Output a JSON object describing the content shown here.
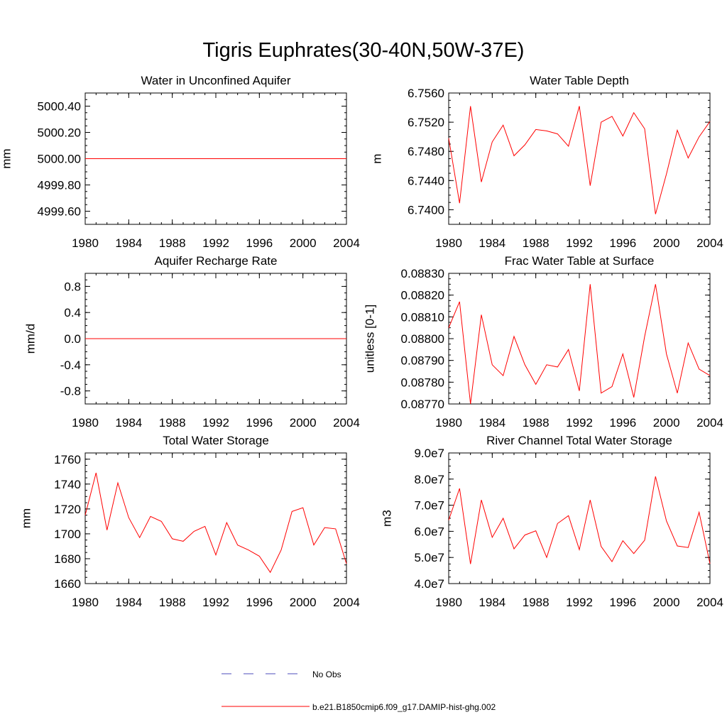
{
  "title": "Tigris Euphrates(30-40N,50W-37E)",
  "chart_data": [
    {
      "type": "line",
      "title": "Water in Unconfined Aquifer",
      "ylabel": "mm",
      "xlim": [
        1980,
        2004
      ],
      "ylim": [
        4999.5,
        5000.5
      ],
      "xticks": [
        1980,
        1984,
        1988,
        1992,
        1996,
        2000,
        2004
      ],
      "yticks": [
        4999.6,
        4999.8,
        5000.0,
        5000.2,
        5000.4
      ],
      "ytick_labels": [
        "4999.60",
        "4999.80",
        "5000.00",
        "5000.20",
        "5000.40"
      ],
      "x": [
        1980,
        2004
      ],
      "series": [
        {
          "name": "b.e21.B1850cmip6.f09_g17.DAMIP-hist-ghg.002",
          "values": [
            5000.0,
            5000.0
          ]
        }
      ]
    },
    {
      "type": "line",
      "title": "Water Table Depth",
      "ylabel": "m",
      "xlim": [
        1980,
        2004
      ],
      "ylim": [
        6.738,
        6.756
      ],
      "xticks": [
        1980,
        1984,
        1988,
        1992,
        1996,
        2000,
        2004
      ],
      "yticks": [
        6.74,
        6.744,
        6.748,
        6.752,
        6.756
      ],
      "ytick_labels": [
        "6.7400",
        "6.7440",
        "6.7480",
        "6.7520",
        "6.7560"
      ],
      "x": [
        1980,
        1981,
        1982,
        1983,
        1984,
        1985,
        1986,
        1987,
        1988,
        1989,
        1990,
        1991,
        1992,
        1993,
        1994,
        1995,
        1996,
        1997,
        1998,
        1999,
        2000,
        2001,
        2002,
        2003,
        2004
      ],
      "series": [
        {
          "name": "b.e21.B1850cmip6.f09_g17.DAMIP-hist-ghg.002",
          "values": [
            6.7498,
            6.7409,
            6.7542,
            6.7438,
            6.7493,
            6.7516,
            6.7474,
            6.7489,
            6.751,
            6.7508,
            6.7504,
            6.7487,
            6.7542,
            6.7433,
            6.752,
            6.7528,
            6.7501,
            6.7533,
            6.7511,
            6.7394,
            6.7449,
            6.7509,
            6.7471,
            6.75,
            6.7521
          ]
        }
      ]
    },
    {
      "type": "line",
      "title": "Aquifer Recharge Rate",
      "ylabel": "mm/d",
      "xlim": [
        1980,
        2004
      ],
      "ylim": [
        -1.0,
        1.0
      ],
      "xticks": [
        1980,
        1984,
        1988,
        1992,
        1996,
        2000,
        2004
      ],
      "yticks": [
        -0.8,
        -0.4,
        0.0,
        0.4,
        0.8
      ],
      "ytick_labels": [
        "-0.8",
        "-0.4",
        "0.0",
        "0.4",
        "0.8"
      ],
      "x": [
        1980,
        2004
      ],
      "series": [
        {
          "name": "b.e21.B1850cmip6.f09_g17.DAMIP-hist-ghg.002",
          "values": [
            0.0,
            0.0
          ]
        }
      ]
    },
    {
      "type": "line",
      "title": "Frac Water Table at Surface",
      "ylabel": "unitless [0-1]",
      "xlim": [
        1980,
        2004
      ],
      "ylim": [
        0.0877,
        0.0883
      ],
      "xticks": [
        1980,
        1984,
        1988,
        1992,
        1996,
        2000,
        2004
      ],
      "yticks": [
        0.0877,
        0.0878,
        0.0879,
        0.088,
        0.0881,
        0.0882,
        0.0883
      ],
      "ytick_labels": [
        "0.08770",
        "0.08780",
        "0.08790",
        "0.08800",
        "0.08810",
        "0.08820",
        "0.08830"
      ],
      "x": [
        1980,
        1981,
        1982,
        1983,
        1984,
        1985,
        1986,
        1987,
        1988,
        1989,
        1990,
        1991,
        1992,
        1993,
        1994,
        1995,
        1996,
        1997,
        1998,
        1999,
        2000,
        2001,
        2002,
        2003,
        2004
      ],
      "series": [
        {
          "name": "b.e21.B1850cmip6.f09_g17.DAMIP-hist-ghg.002",
          "values": [
            0.08805,
            0.08817,
            0.0877,
            0.08811,
            0.08788,
            0.08783,
            0.08801,
            0.08788,
            0.08779,
            0.08788,
            0.08787,
            0.08795,
            0.08776,
            0.08825,
            0.08775,
            0.08778,
            0.08793,
            0.08773,
            0.08801,
            0.08825,
            0.08793,
            0.08775,
            0.08798,
            0.08786,
            0.08783
          ]
        }
      ]
    },
    {
      "type": "line",
      "title": "Total Water Storage",
      "ylabel": "mm",
      "xlim": [
        1980,
        2004
      ],
      "ylim": [
        1660,
        1765
      ],
      "xticks": [
        1980,
        1984,
        1988,
        1992,
        1996,
        2000,
        2004
      ],
      "yticks": [
        1660,
        1680,
        1700,
        1720,
        1740,
        1760
      ],
      "ytick_labels": [
        "1660",
        "1680",
        "1700",
        "1720",
        "1740",
        "1760"
      ],
      "x": [
        1980,
        1981,
        1982,
        1983,
        1984,
        1985,
        1986,
        1987,
        1988,
        1989,
        1990,
        1991,
        1992,
        1993,
        1994,
        1995,
        1996,
        1997,
        1998,
        1999,
        2000,
        2001,
        2002,
        2003,
        2004
      ],
      "series": [
        {
          "name": "b.e21.B1850cmip6.f09_g17.DAMIP-hist-ghg.002",
          "values": [
            1715,
            1749,
            1703,
            1741,
            1713,
            1697,
            1714,
            1710,
            1696,
            1694,
            1702,
            1706,
            1683,
            1709,
            1691,
            1687,
            1682,
            1669,
            1687,
            1718,
            1721,
            1691,
            1705,
            1704,
            1676
          ]
        }
      ]
    },
    {
      "type": "line",
      "title": "River Channel Total Water Storage",
      "ylabel": "m3",
      "xlim": [
        1980,
        2004
      ],
      "ylim": [
        40000000,
        90000000
      ],
      "xticks": [
        1980,
        1984,
        1988,
        1992,
        1996,
        2000,
        2004
      ],
      "yticks": [
        40000000,
        50000000,
        60000000,
        70000000,
        80000000,
        90000000
      ],
      "ytick_labels": [
        "4.0e7",
        "5.0e7",
        "6.0e7",
        "7.0e7",
        "8.0e7",
        "9.0e7"
      ],
      "x": [
        1980,
        1981,
        1982,
        1983,
        1984,
        1985,
        1986,
        1987,
        1988,
        1989,
        1990,
        1991,
        1992,
        1993,
        1994,
        1995,
        1996,
        1997,
        1998,
        1999,
        2000,
        2001,
        2002,
        2003,
        2004
      ],
      "series": [
        {
          "name": "b.e21.B1850cmip6.f09_g17.DAMIP-hist-ghg.002",
          "values": [
            64300000,
            76400000,
            47500000,
            72000000,
            57700000,
            65000000,
            53300000,
            58600000,
            60200000,
            50000000,
            63000000,
            66000000,
            53000000,
            72000000,
            54200000,
            48400000,
            56400000,
            51500000,
            56600000,
            81000000,
            64000000,
            54400000,
            53800000,
            67300000,
            47600000
          ]
        }
      ]
    }
  ],
  "legend": {
    "obs_label": "No Obs",
    "obs_color": "#4d4dbd",
    "model_label": "b.e21.B1850cmip6.f09_g17.DAMIP-hist-ghg.002",
    "model_color": "#ff0000"
  }
}
